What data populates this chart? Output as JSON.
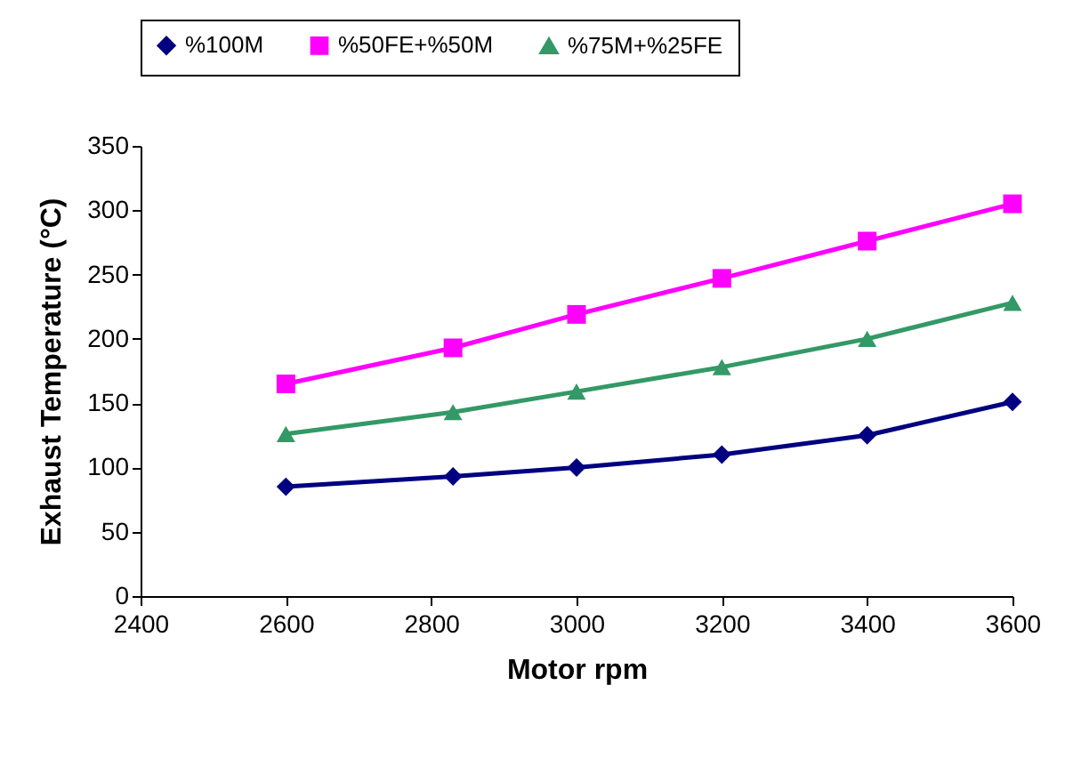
{
  "chart_data": {
    "type": "line",
    "xlabel": "Motor rpm",
    "ylabel": "Exhaust Temperature (°C)",
    "x": [
      2600,
      2830,
      3000,
      3200,
      3400,
      3600
    ],
    "series": [
      {
        "name": "%100M",
        "color": "#000080",
        "marker": "diamond",
        "values": [
          85,
          93,
          100,
          110,
          125,
          151
        ]
      },
      {
        "name": "%50FE+%50M",
        "color": "#ff00ff",
        "marker": "square",
        "values": [
          165,
          193,
          219,
          247,
          276,
          305
        ]
      },
      {
        "name": "%75M+%25FE",
        "color": "#339966",
        "marker": "triangle",
        "values": [
          126,
          143,
          159,
          178,
          200,
          228
        ]
      }
    ],
    "xlim": [
      2400,
      3600
    ],
    "xticks": [
      2400,
      2600,
      2800,
      3000,
      3200,
      3400,
      3600
    ],
    "ylim": [
      0,
      350
    ],
    "yticks": [
      0,
      50,
      100,
      150,
      200,
      250,
      300,
      350
    ],
    "grid": false,
    "legend": "top"
  }
}
